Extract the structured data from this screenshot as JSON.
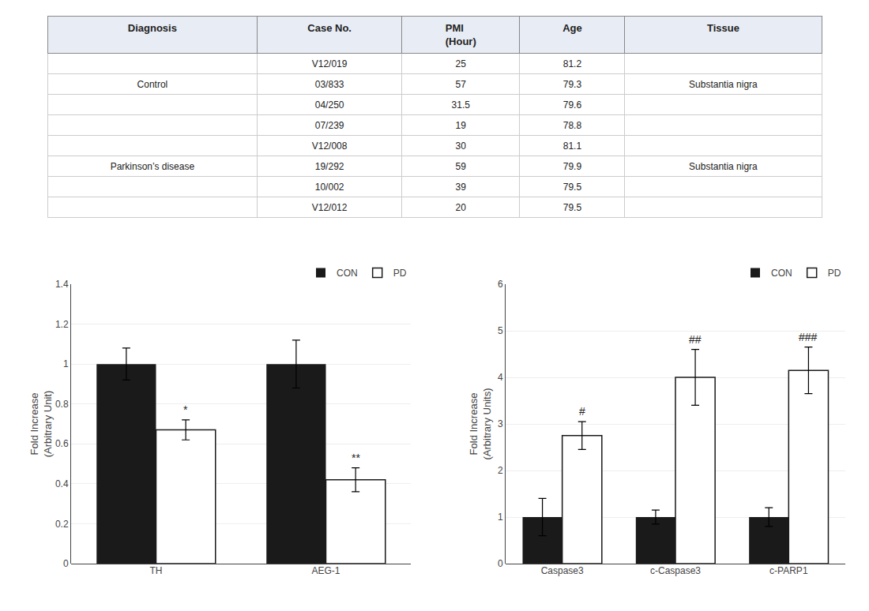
{
  "chart_data": [
    {
      "type": "table",
      "columns": [
        "Diagnosis",
        "Case No.",
        "PMI\n(Hour)",
        "Age",
        "Tissue"
      ],
      "groups": [
        {
          "diagnosis": "Control",
          "tissue": "Substantia nigra",
          "rows": [
            [
              "V12/019",
              25,
              81.2
            ],
            [
              "03/833",
              57,
              79.3
            ],
            [
              "04/250",
              31.5,
              79.6
            ],
            [
              "07/239",
              19,
              78.8
            ]
          ]
        },
        {
          "diagnosis": "Parkinson’s disease",
          "tissue": "Substantia nigra",
          "rows": [
            [
              "V12/008",
              30,
              81.1
            ],
            [
              "19/292",
              59,
              79.9
            ],
            [
              "10/002",
              39,
              79.5
            ],
            [
              "V12/012",
              20,
              79.5
            ]
          ]
        }
      ]
    },
    {
      "type": "bar",
      "categories": [
        "TH",
        "AEG-1"
      ],
      "ylabel": "Fold Increase\n(Arbitrary Unit)",
      "ylim": [
        0,
        1.4
      ],
      "yticks": [
        0,
        0.2,
        0.4,
        0.6,
        0.8,
        1.0,
        1.2,
        1.4
      ],
      "legend": "upper right",
      "series": [
        {
          "name": "CON",
          "color": "#1a1a1a",
          "values": [
            1.0,
            1.0
          ],
          "errors": [
            0.08,
            0.12
          ]
        },
        {
          "name": "PD",
          "color": "#ffffff",
          "border_color": "#1a1a1a",
          "values": [
            0.67,
            0.42
          ],
          "errors": [
            0.05,
            0.06
          ],
          "annotations": [
            "*",
            "**"
          ]
        }
      ]
    },
    {
      "type": "bar",
      "categories": [
        "Caspase3",
        "c-Caspase3",
        "c-PARP1"
      ],
      "ylabel": "Fold Increase\n(Arbitrary Units)",
      "ylim": [
        0,
        6
      ],
      "yticks": [
        0,
        1,
        2,
        3,
        4,
        5,
        6
      ],
      "legend": "upper right",
      "series": [
        {
          "name": "CON",
          "color": "#1a1a1a",
          "values": [
            1.0,
            1.0,
            1.0
          ],
          "errors": [
            0.4,
            0.15,
            0.2
          ]
        },
        {
          "name": "PD",
          "color": "#ffffff",
          "border_color": "#1a1a1a",
          "values": [
            2.75,
            4.0,
            4.15
          ],
          "errors": [
            0.3,
            0.6,
            0.5
          ],
          "annotations": [
            "#",
            "##",
            "###"
          ]
        }
      ]
    }
  ]
}
